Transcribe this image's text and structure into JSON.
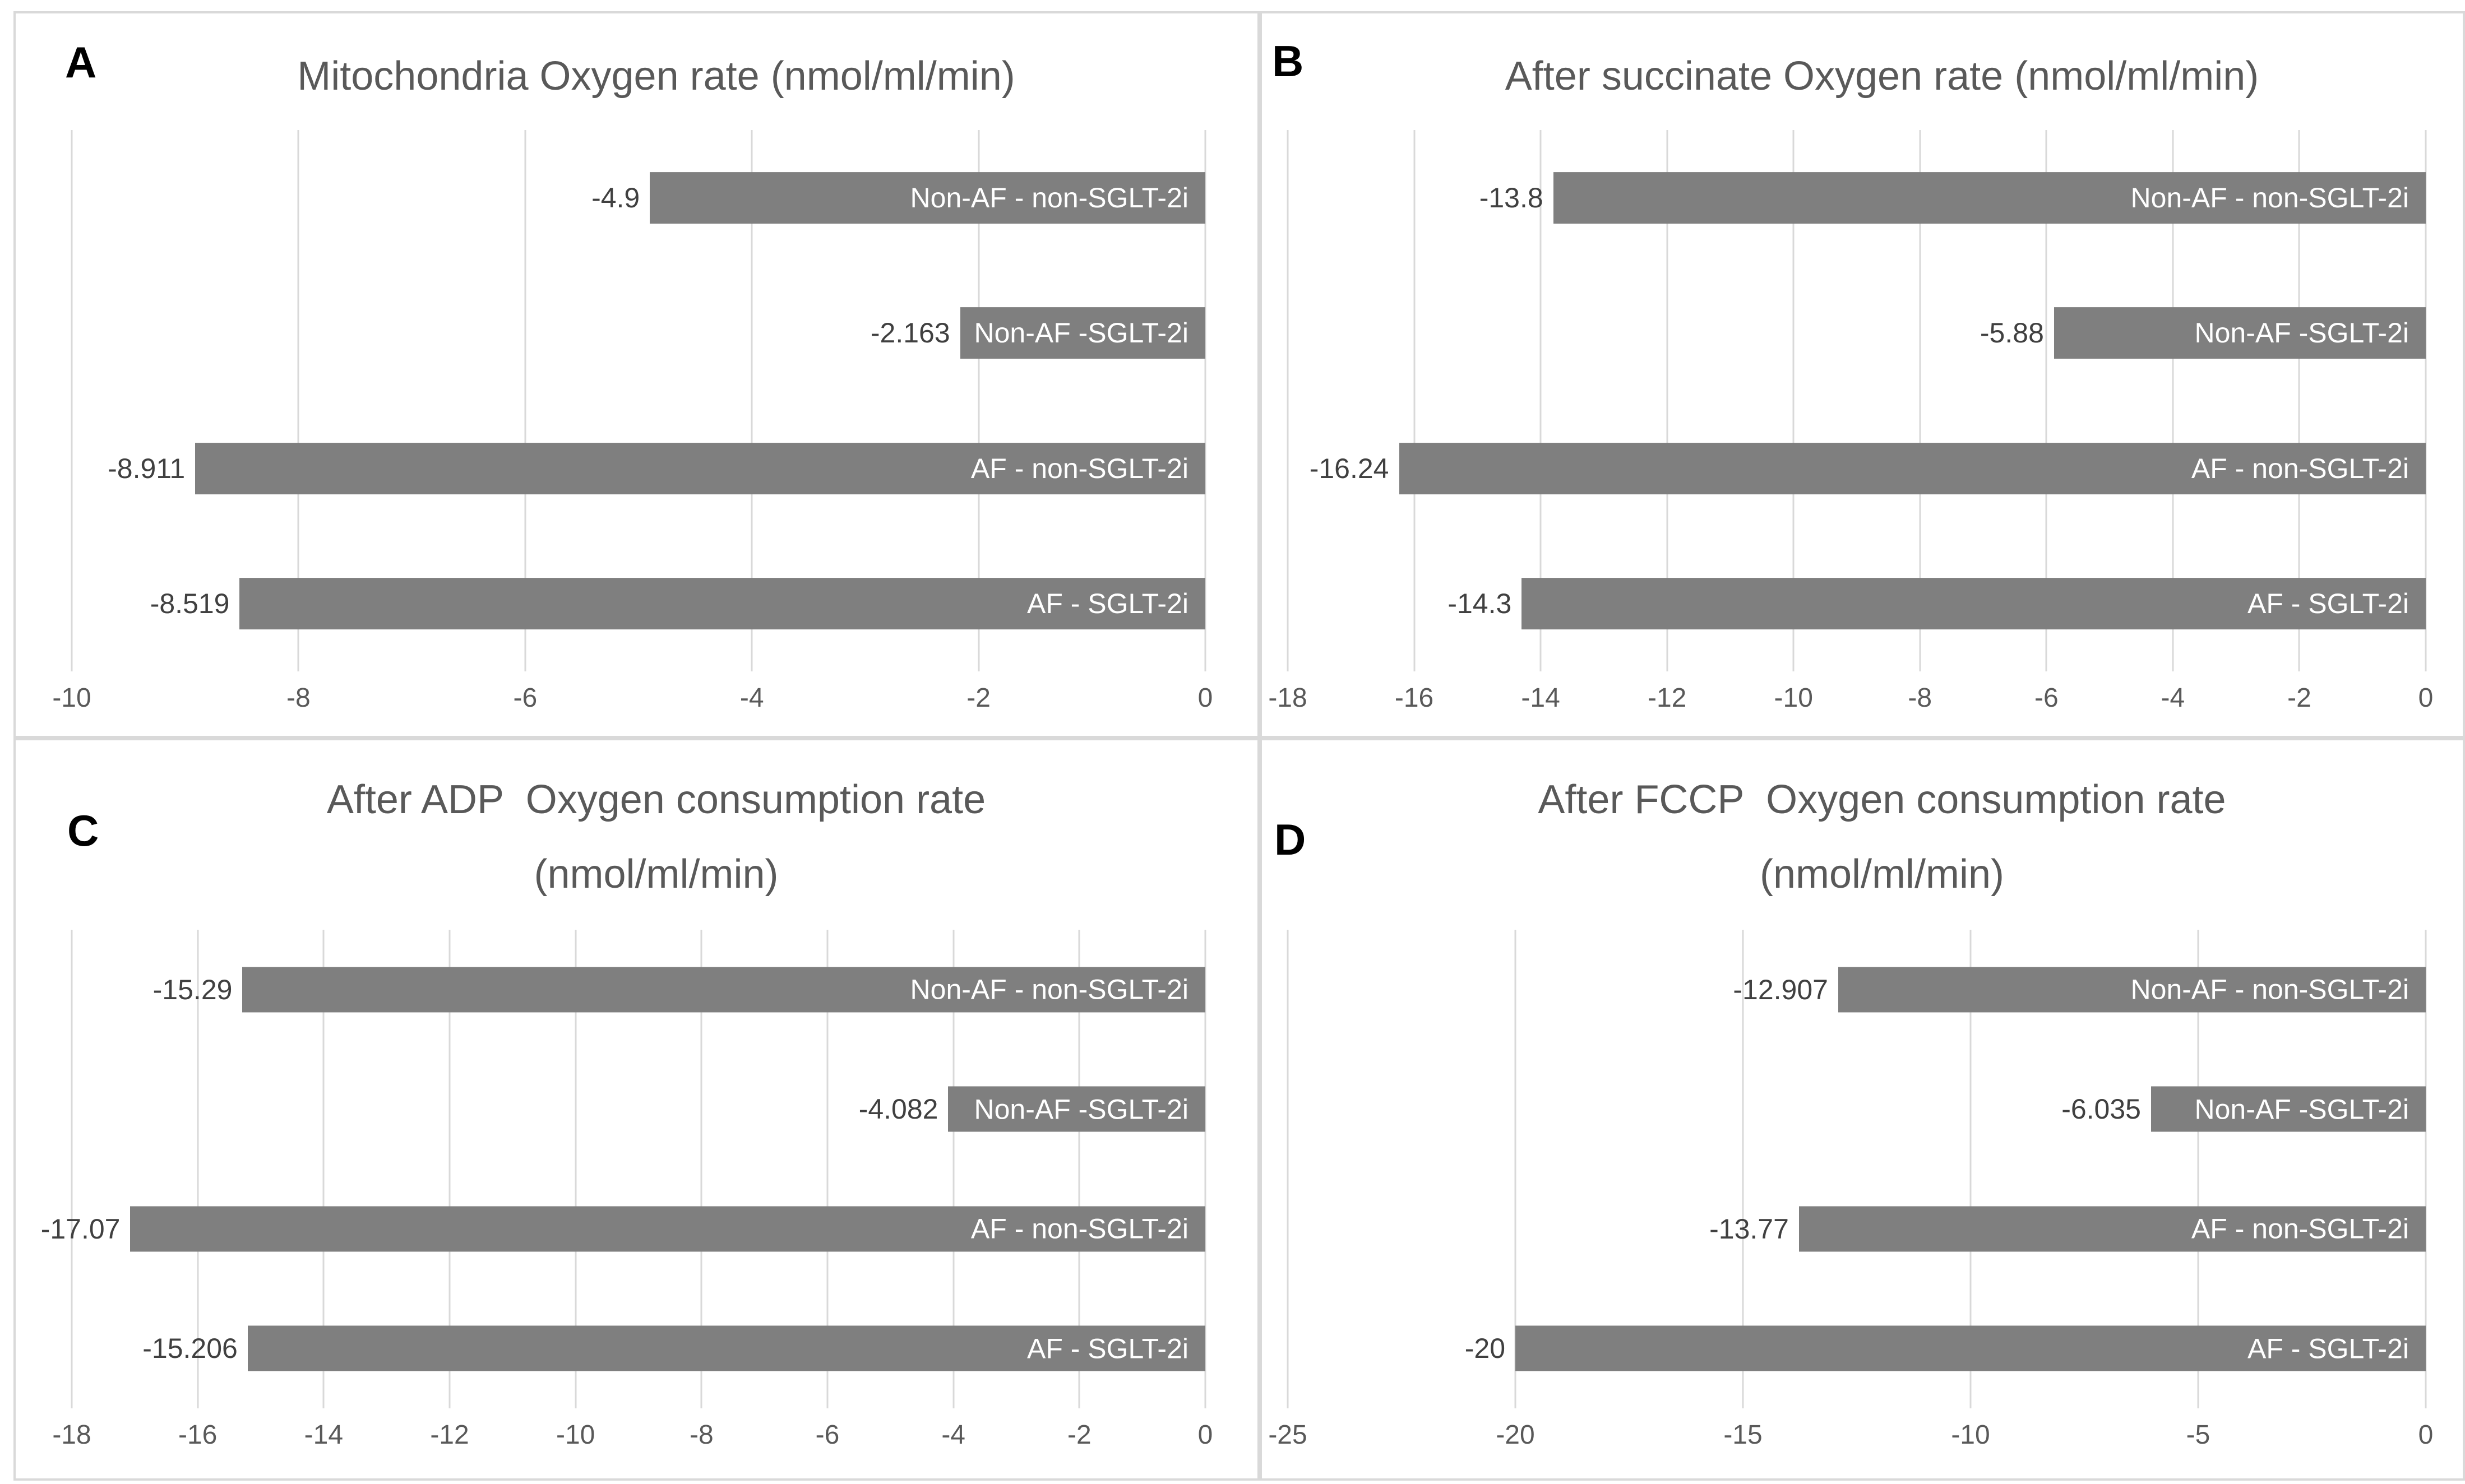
{
  "colors": {
    "bar": "#7f7f7f",
    "gridline": "#d9d9d9",
    "border": "#d9d9d9",
    "title": "#595959",
    "tick": "#595959",
    "value_label": "#404040",
    "category_label": "#ffffff",
    "panel_letter": "#000000",
    "background": "#ffffff"
  },
  "chart_data": [
    {
      "type": "bar",
      "orientation": "horizontal",
      "panel_letter": "A",
      "title": "Mitochondria Oxygen rate (nmol/ml/min)",
      "title_display": "Mitochondria Oxygen rate (nmol/ml/min)",
      "categories": [
        "Non-AF - non-SGLT-2i",
        "Non-AF -SGLT-2i",
        "AF - non-SGLT-2i",
        "AF - SGLT-2i"
      ],
      "values": [
        -4.9,
        -2.163,
        -8.911,
        -8.519
      ],
      "value_labels": [
        "-4.9",
        "-2.163",
        "-8.911",
        "-8.519"
      ],
      "xlim": [
        -10,
        0
      ],
      "x_ticks": [
        -10,
        -8,
        -6,
        -4,
        -2,
        0
      ],
      "grid": true,
      "legend": "none",
      "xlabel": "",
      "ylabel": ""
    },
    {
      "type": "bar",
      "orientation": "horizontal",
      "panel_letter": "B",
      "title": "After succinate Oxygen rate (nmol/ml/min)",
      "title_display": "After succinate Oxygen rate (nmol/ml/min)",
      "categories": [
        "Non-AF - non-SGLT-2i",
        "Non-AF -SGLT-2i",
        "AF - non-SGLT-2i",
        "AF - SGLT-2i"
      ],
      "values": [
        -13.8,
        -5.88,
        -16.24,
        -14.3
      ],
      "value_labels": [
        "-13.8",
        "-5.88",
        "-16.24",
        "-14.3"
      ],
      "xlim": [
        -18,
        0
      ],
      "x_ticks": [
        -18,
        -16,
        -14,
        -12,
        -10,
        -8,
        -6,
        -4,
        -2,
        0
      ],
      "grid": true,
      "legend": "none",
      "xlabel": "",
      "ylabel": ""
    },
    {
      "type": "bar",
      "orientation": "horizontal",
      "panel_letter": "C",
      "title": "After ADP  Oxygen consumption rate (nmol/ml/min)",
      "title_display": "After ADP  Oxygen consumption rate\n(nmol/ml/min)",
      "categories": [
        "Non-AF - non-SGLT-2i",
        "Non-AF -SGLT-2i",
        "AF - non-SGLT-2i",
        "AF - SGLT-2i"
      ],
      "values": [
        -15.29,
        -4.082,
        -17.07,
        -15.206
      ],
      "value_labels": [
        "-15.29",
        "-4.082",
        "-17.07",
        "-15.206"
      ],
      "xlim": [
        -18,
        0
      ],
      "x_ticks": [
        -18,
        -16,
        -14,
        -12,
        -10,
        -8,
        -6,
        -4,
        -2,
        0
      ],
      "grid": true,
      "legend": "none",
      "xlabel": "",
      "ylabel": ""
    },
    {
      "type": "bar",
      "orientation": "horizontal",
      "panel_letter": "D",
      "title": "After FCCP  Oxygen consumption rate (nmol/ml/min)",
      "title_display": "After FCCP  Oxygen consumption rate\n(nmol/ml/min)",
      "categories": [
        "Non-AF - non-SGLT-2i",
        "Non-AF -SGLT-2i",
        "AF - non-SGLT-2i",
        "AF - SGLT-2i"
      ],
      "values": [
        -12.907,
        -6.035,
        -13.77,
        -20
      ],
      "value_labels": [
        "-12.907",
        "-6.035",
        "-13.77",
        "-20"
      ],
      "xlim": [
        -25,
        0
      ],
      "x_ticks": [
        -25,
        -20,
        -15,
        -10,
        -5,
        0
      ],
      "grid": true,
      "legend": "none",
      "xlabel": "",
      "ylabel": ""
    }
  ]
}
